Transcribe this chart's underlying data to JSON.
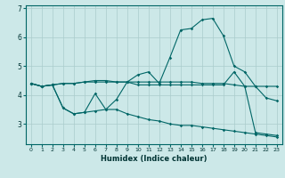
{
  "xlabel": "Humidex (Indice chaleur)",
  "bg_color": "#cce8e8",
  "grid_color": "#aacccc",
  "line_color": "#006666",
  "x_ticks": [
    0,
    1,
    2,
    3,
    4,
    5,
    6,
    7,
    8,
    9,
    10,
    11,
    12,
    13,
    14,
    15,
    16,
    17,
    18,
    19,
    20,
    21,
    22,
    23
  ],
  "y_ticks": [
    3,
    4,
    5,
    6,
    7
  ],
  "ylim": [
    2.3,
    7.1
  ],
  "xlim": [
    -0.5,
    23.5
  ],
  "series": {
    "line1": {
      "x": [
        0,
        1,
        2,
        3,
        4,
        5,
        6,
        7,
        8,
        9,
        10,
        11,
        12,
        13,
        14,
        15,
        16,
        17,
        18,
        19,
        20,
        21,
        22,
        23
      ],
      "y": [
        4.4,
        4.3,
        4.35,
        4.4,
        4.4,
        4.45,
        4.5,
        4.5,
        4.45,
        4.45,
        4.45,
        4.45,
        4.45,
        4.45,
        4.45,
        4.45,
        4.4,
        4.4,
        4.4,
        4.35,
        4.3,
        4.3,
        4.3,
        4.3
      ]
    },
    "line2": {
      "x": [
        0,
        1,
        2,
        3,
        4,
        5,
        6,
        7,
        8,
        9,
        10,
        11,
        12,
        13,
        14,
        15,
        16,
        17,
        18,
        19,
        20,
        21,
        22,
        23
      ],
      "y": [
        4.4,
        4.3,
        4.35,
        4.4,
        4.4,
        4.45,
        4.45,
        4.45,
        4.45,
        4.45,
        4.7,
        4.8,
        4.4,
        5.3,
        6.25,
        6.3,
        6.6,
        6.65,
        6.05,
        5.0,
        4.8,
        4.3,
        3.9,
        3.8
      ]
    },
    "line3": {
      "x": [
        0,
        1,
        2,
        3,
        4,
        5,
        6,
        7,
        8,
        9,
        10,
        11,
        12,
        13,
        14,
        15,
        16,
        17,
        18,
        19,
        20,
        21,
        22,
        23
      ],
      "y": [
        4.4,
        4.3,
        4.35,
        3.55,
        3.35,
        3.4,
        4.05,
        3.5,
        3.85,
        4.45,
        4.35,
        4.35,
        4.35,
        4.35,
        4.35,
        4.35,
        4.35,
        4.35,
        4.35,
        4.8,
        4.3,
        2.7,
        2.65,
        2.6
      ]
    },
    "line4": {
      "x": [
        0,
        1,
        2,
        3,
        4,
        5,
        6,
        7,
        8,
        9,
        10,
        11,
        12,
        13,
        14,
        15,
        16,
        17,
        18,
        19,
        20,
        21,
        22,
        23
      ],
      "y": [
        4.4,
        4.3,
        4.35,
        3.55,
        3.35,
        3.4,
        3.45,
        3.5,
        3.5,
        3.35,
        3.25,
        3.15,
        3.1,
        3.0,
        2.95,
        2.95,
        2.9,
        2.85,
        2.8,
        2.75,
        2.7,
        2.65,
        2.6,
        2.55
      ]
    }
  }
}
